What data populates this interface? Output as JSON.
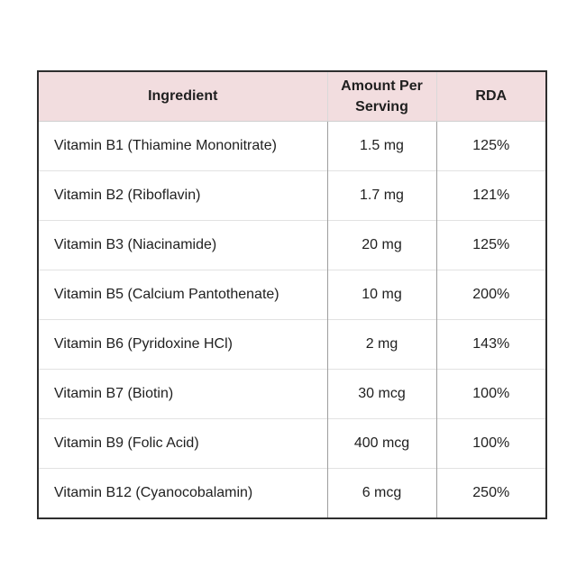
{
  "table": {
    "columns": [
      {
        "label": "Ingredient"
      },
      {
        "label": "Amount Per Serving"
      },
      {
        "label": "RDA"
      }
    ],
    "rows": [
      {
        "ingredient": "Vitamin B1 (Thiamine Mononitrate)",
        "amount": "1.5 mg",
        "rda": "125%"
      },
      {
        "ingredient": "Vitamin B2 (Riboflavin)",
        "amount": "1.7 mg",
        "rda": "121%"
      },
      {
        "ingredient": "Vitamin B3 (Niacinamide)",
        "amount": "20 mg",
        "rda": "125%"
      },
      {
        "ingredient": "Vitamin B5 (Calcium Pantothenate)",
        "amount": "10 mg",
        "rda": "200%"
      },
      {
        "ingredient": "Vitamin B6 (Pyridoxine HCl)",
        "amount": "2 mg",
        "rda": "143%"
      },
      {
        "ingredient": "Vitamin B7 (Biotin)",
        "amount": "30 mcg",
        "rda": "100%"
      },
      {
        "ingredient": "Vitamin B9 (Folic Acid)",
        "amount": "400 mcg",
        "rda": "100%"
      },
      {
        "ingredient": "Vitamin B12 (Cyanocobalamin)",
        "amount": "6 mcg",
        "rda": "250%"
      }
    ]
  },
  "colors": {
    "header_background": "#f2dddf",
    "outer_border": "#2e2e2e",
    "inner_vertical_border": "#9e9e9e",
    "inner_horizontal_border": "#e2e2e2",
    "text": "#1f1f1f"
  }
}
